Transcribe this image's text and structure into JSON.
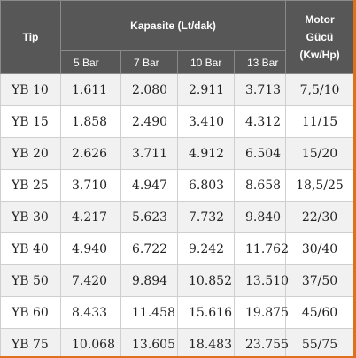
{
  "table": {
    "header": {
      "tip": "Tip",
      "capacity": "Kapasite (Lt/dak)",
      "power": "Motor Gücü (Kw/Hp)",
      "pressures": [
        "5 Bar",
        "7 Bar",
        "10 Bar",
        "13 Bar"
      ]
    },
    "rows": [
      [
        "YB 10",
        "1.611",
        "2.080",
        "2.911",
        "3.713",
        "7,5/10"
      ],
      [
        "YB 15",
        "1.858",
        "2.490",
        "3.410",
        "4.312",
        "11/15"
      ],
      [
        "YB 20",
        "2.626",
        "3.711",
        "4.912",
        "6.504",
        "15/20"
      ],
      [
        "YB 25",
        "3.710",
        "4.947",
        "6.803",
        "8.658",
        "18,5/25"
      ],
      [
        "YB 30",
        "4.217",
        "5.623",
        "7.732",
        "9.840",
        "22/30"
      ],
      [
        "YB 40",
        "4.940",
        "6.722",
        "9.242",
        "11.762",
        "30/40"
      ],
      [
        "YB 50",
        "7.420",
        "9.894",
        "10.852",
        "13.510",
        "37/50"
      ],
      [
        "YB 60",
        "8.433",
        "11.458",
        "15.616",
        "19.875",
        "45/60"
      ],
      [
        "YB 75",
        "10.068",
        "13.605",
        "18.483",
        "23.755",
        "55/75"
      ]
    ]
  }
}
